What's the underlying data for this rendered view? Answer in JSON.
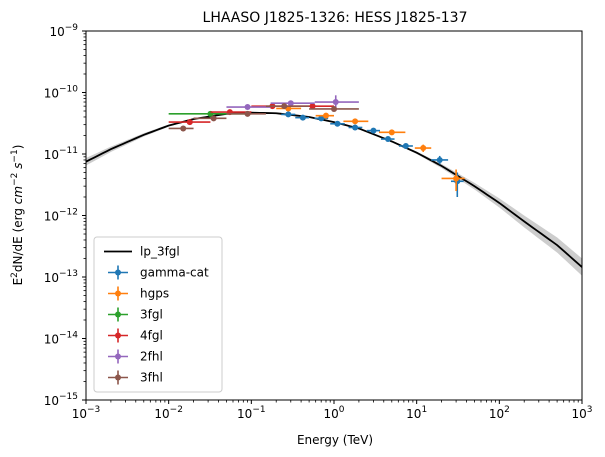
{
  "chart_data": {
    "type": "scatter",
    "title": "LHAASO J1825-1326: HESS J1825-137",
    "xlabel": "Energy (TeV)",
    "ylabel": "E²dN/dE (erg cm⁻² s⁻¹)",
    "ylabel_parts": {
      "base": "E",
      "sup1": "2",
      "mid": "dN/dE (erg ",
      "cm": "cm",
      "sup2": "−2",
      "s": " s",
      "sup3": "−1",
      "close": ")"
    },
    "x_scale": "log",
    "y_scale": "log",
    "xlim": [
      0.001,
      1000
    ],
    "ylim": [
      1e-15,
      1e-09
    ],
    "x_ticks": [
      {
        "value": 0.001,
        "base": "10",
        "exp": "−3"
      },
      {
        "value": 0.01,
        "base": "10",
        "exp": "−2"
      },
      {
        "value": 0.1,
        "base": "10",
        "exp": "−1"
      },
      {
        "value": 1,
        "base": "10",
        "exp": "0"
      },
      {
        "value": 10,
        "base": "10",
        "exp": "1"
      },
      {
        "value": 100,
        "base": "10",
        "exp": "2"
      },
      {
        "value": 1000,
        "base": "10",
        "exp": "3"
      }
    ],
    "y_ticks": [
      {
        "value": 1e-15,
        "base": "10",
        "exp": "−15"
      },
      {
        "value": 1e-14,
        "base": "10",
        "exp": "−14"
      },
      {
        "value": 1e-13,
        "base": "10",
        "exp": "−13"
      },
      {
        "value": 1e-12,
        "base": "10",
        "exp": "−12"
      },
      {
        "value": 1e-11,
        "base": "10",
        "exp": "−11"
      },
      {
        "value": 1e-10,
        "base": "10",
        "exp": "−10"
      },
      {
        "value": 1e-09,
        "base": "10",
        "exp": "−9"
      }
    ],
    "grid": false,
    "legend_position": "lower-left",
    "model": {
      "name": "lp_3fgl",
      "color": "#000000",
      "band_color": "#c8c8c8",
      "x": [
        0.001,
        0.002,
        0.005,
        0.01,
        0.02,
        0.05,
        0.1,
        0.2,
        0.5,
        1,
        2,
        5,
        10,
        20,
        50,
        100,
        200,
        500,
        1000
      ],
      "y": [
        7.5e-12,
        1.2e-11,
        2.05e-11,
        2.9e-11,
        3.7e-11,
        4.5e-11,
        4.7e-11,
        4.6e-11,
        4e-11,
        3.3e-11,
        2.6e-11,
        1.6e-11,
        1.05e-11,
        6.4e-12,
        3e-12,
        1.6e-12,
        8e-13,
        3.3e-13,
        1.45e-13
      ],
      "y_lo": [
        6.5e-12,
        1.08e-11,
        1.92e-11,
        2.78e-11,
        3.6e-11,
        4.42e-11,
        4.63e-11,
        4.54e-11,
        3.95e-11,
        3.26e-11,
        2.56e-11,
        1.56e-11,
        1e-11,
        5.9e-12,
        2.65e-12,
        1.35e-12,
        6.4e-13,
        2.5e-13,
        1.05e-13
      ],
      "y_hi": [
        8.6e-12,
        1.32e-11,
        2.18e-11,
        3.02e-11,
        3.8e-11,
        4.58e-11,
        4.77e-11,
        4.66e-11,
        4.05e-11,
        3.34e-11,
        2.64e-11,
        1.64e-11,
        1.1e-11,
        6.9e-12,
        3.4e-12,
        1.9e-12,
        1e-12,
        4.4e-13,
        2e-13
      ]
    },
    "series": [
      {
        "name": "gamma-cat",
        "color": "#1f77b4",
        "points": [
          {
            "x": 0.28,
            "y": 4.4e-11,
            "xlo": 0.23,
            "xhi": 0.34,
            "ylo": 4.1e-11,
            "yhi": 4.7e-11
          },
          {
            "x": 0.42,
            "y": 3.9e-11,
            "xlo": 0.34,
            "xhi": 0.5,
            "ylo": 3.6e-11,
            "yhi": 4.2e-11
          },
          {
            "x": 0.7,
            "y": 3.8e-11,
            "xlo": 0.58,
            "xhi": 0.85,
            "ylo": 3.5e-11,
            "yhi": 4.1e-11
          },
          {
            "x": 1.1,
            "y": 3.1e-11,
            "xlo": 0.9,
            "xhi": 1.35,
            "ylo": 2.9e-11,
            "yhi": 3.3e-11
          },
          {
            "x": 1.8,
            "y": 2.7e-11,
            "xlo": 1.5,
            "xhi": 2.2,
            "ylo": 2.5e-11,
            "yhi": 2.9e-11
          },
          {
            "x": 3.0,
            "y": 2.4e-11,
            "xlo": 2.5,
            "xhi": 3.6,
            "ylo": 2.2e-11,
            "yhi": 2.6e-11
          },
          {
            "x": 4.5,
            "y": 1.75e-11,
            "xlo": 3.7,
            "xhi": 5.4,
            "ylo": 1.6e-11,
            "yhi": 1.9e-11
          },
          {
            "x": 7.4,
            "y": 1.35e-11,
            "xlo": 6.1,
            "xhi": 9.0,
            "ylo": 1.22e-11,
            "yhi": 1.48e-11
          },
          {
            "x": 19,
            "y": 8e-12,
            "xlo": 15,
            "xhi": 24,
            "ylo": 6.8e-12,
            "yhi": 9.3e-12
          },
          {
            "x": 31,
            "y": 3.6e-12,
            "xlo": 26,
            "xhi": 37,
            "ylo": 2e-12,
            "yhi": 5e-12
          }
        ]
      },
      {
        "name": "hgps",
        "color": "#ff7f0e",
        "points": [
          {
            "x": 0.28,
            "y": 5.5e-11,
            "xlo": 0.2,
            "xhi": 0.4,
            "ylo": 5e-11,
            "yhi": 6e-11
          },
          {
            "x": 0.8,
            "y": 4.2e-11,
            "xlo": 0.6,
            "xhi": 1.0,
            "ylo": 3.9e-11,
            "yhi": 4.5e-11
          },
          {
            "x": 1.8,
            "y": 3.4e-11,
            "xlo": 1.3,
            "xhi": 2.6,
            "ylo": 3.1e-11,
            "yhi": 3.7e-11
          },
          {
            "x": 5.0,
            "y": 2.25e-11,
            "xlo": 3.5,
            "xhi": 7.3,
            "ylo": 2.05e-11,
            "yhi": 2.45e-11
          },
          {
            "x": 12,
            "y": 1.25e-11,
            "xlo": 9.5,
            "xhi": 15,
            "ylo": 1.08e-11,
            "yhi": 1.42e-11
          },
          {
            "x": 30,
            "y": 4e-12,
            "xlo": 20,
            "xhi": 38,
            "ylo": 2.5e-12,
            "yhi": 5.6e-12
          }
        ]
      },
      {
        "name": "3fgl",
        "color": "#2ca02c",
        "points": [
          {
            "x": 0.032,
            "y": 4.5e-11,
            "xlo": 0.01,
            "xhi": 0.1,
            "ylo": 4.2e-11,
            "yhi": 4.8e-11
          }
        ]
      },
      {
        "name": "4fgl",
        "color": "#d62728",
        "points": [
          {
            "x": 0.018,
            "y": 3.3e-11,
            "xlo": 0.01,
            "xhi": 0.032,
            "ylo": 3.1e-11,
            "yhi": 3.5e-11
          },
          {
            "x": 0.055,
            "y": 4.8e-11,
            "xlo": 0.032,
            "xhi": 0.1,
            "ylo": 4.6e-11,
            "yhi": 5e-11
          },
          {
            "x": 0.18,
            "y": 6e-11,
            "xlo": 0.1,
            "xhi": 0.32,
            "ylo": 5.6e-11,
            "yhi": 6.4e-11
          },
          {
            "x": 0.55,
            "y": 6e-11,
            "xlo": 0.32,
            "xhi": 1.0,
            "ylo": 5.3e-11,
            "yhi": 6.7e-11
          }
        ]
      },
      {
        "name": "2fhl",
        "color": "#9467bd",
        "points": [
          {
            "x": 0.09,
            "y": 5.8e-11,
            "xlo": 0.05,
            "xhi": 0.171,
            "ylo": 5.5e-11,
            "yhi": 6.1e-11
          },
          {
            "x": 0.3,
            "y": 6.7e-11,
            "xlo": 0.171,
            "xhi": 0.585,
            "ylo": 6.3e-11,
            "yhi": 7.1e-11
          },
          {
            "x": 1.05,
            "y": 7e-11,
            "xlo": 0.585,
            "xhi": 2.0,
            "ylo": 5e-11,
            "yhi": 9e-11
          }
        ]
      },
      {
        "name": "3fhl",
        "color": "#8c564b",
        "points": [
          {
            "x": 0.015,
            "y": 2.6e-11,
            "xlo": 0.01,
            "xhi": 0.02,
            "ylo": 2.35e-11,
            "yhi": 2.85e-11
          },
          {
            "x": 0.035,
            "y": 3.8e-11,
            "xlo": 0.02,
            "xhi": 0.05,
            "ylo": 3.6e-11,
            "yhi": 4e-11
          },
          {
            "x": 0.09,
            "y": 4.5e-11,
            "xlo": 0.05,
            "xhi": 0.15,
            "ylo": 4.3e-11,
            "yhi": 4.7e-11
          },
          {
            "x": 0.25,
            "y": 6e-11,
            "xlo": 0.15,
            "xhi": 0.5,
            "ylo": 5.7e-11,
            "yhi": 6.3e-11
          },
          {
            "x": 1.0,
            "y": 5.4e-11,
            "xlo": 0.5,
            "xhi": 2.0,
            "ylo": 4.9e-11,
            "yhi": 5.9e-11
          }
        ]
      }
    ]
  }
}
